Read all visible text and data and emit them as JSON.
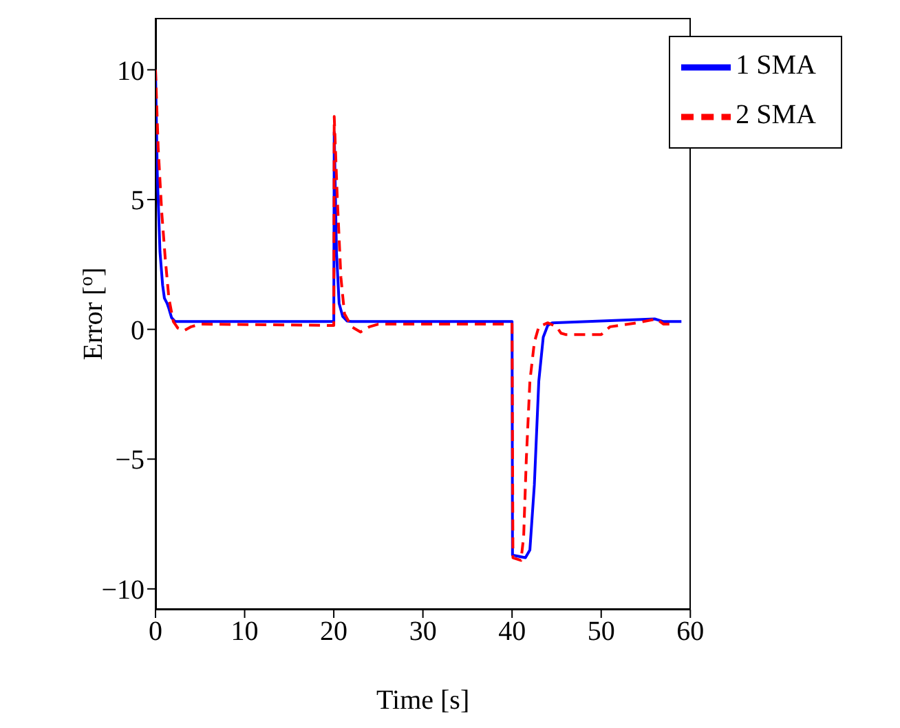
{
  "chart_data": {
    "type": "line",
    "xlabel": "Time [s]",
    "ylabel": "Error [$^{o}$]",
    "xlim": [
      0,
      60
    ],
    "xticks": [
      0,
      10,
      20,
      30,
      40,
      50,
      60
    ],
    "ylim": [
      -10.8,
      12
    ],
    "yticks": [
      {
        "value": -10,
        "label": "−10"
      },
      {
        "value": -5,
        "label": "−5"
      },
      0,
      5,
      10
    ],
    "grid": false,
    "legend": "top right",
    "series": [
      {
        "name": "1 SMA",
        "color": "#0000ff",
        "line_style": "solid",
        "x": [
          0,
          0.2,
          0.5,
          0.8,
          1.0,
          1.3,
          1.5,
          1.8,
          2.2,
          20,
          20.05,
          20.3,
          20.6,
          21,
          21.5,
          22,
          40,
          40.05,
          41.5,
          42,
          42.5,
          43,
          43.5,
          44,
          44.5,
          56,
          57,
          59
        ],
        "values": [
          10,
          6,
          3,
          1.7,
          1.2,
          1.0,
          0.8,
          0.45,
          0.3,
          0.3,
          7.6,
          3,
          1,
          0.5,
          0.32,
          0.3,
          0.3,
          -8.7,
          -8.8,
          -8.5,
          -6,
          -2,
          -0.3,
          0.15,
          0.25,
          0.4,
          0.3,
          0.3
        ]
      },
      {
        "name": "2 SMA",
        "color": "#ff0000",
        "line_style": "dashed",
        "x": [
          0,
          0.3,
          0.7,
          1.1,
          1.5,
          2,
          2.5,
          3.2,
          4,
          5,
          20,
          20.05,
          20.4,
          20.8,
          21.2,
          22,
          23,
          24,
          25,
          40,
          40.1,
          41,
          41.3,
          41.6,
          42,
          42.5,
          43,
          44,
          45,
          45.5,
          46,
          50,
          51,
          54,
          56.2,
          57,
          58
        ],
        "values": [
          10,
          7,
          4.5,
          2.7,
          1.2,
          0.3,
          0.05,
          -0.05,
          0.1,
          0.2,
          0.15,
          8.2,
          5,
          2,
          0.6,
          0.1,
          -0.1,
          0.1,
          0.2,
          0.2,
          -8.8,
          -8.9,
          -8.0,
          -5,
          -2,
          -0.5,
          0.1,
          0.25,
          0.1,
          -0.15,
          -0.2,
          -0.2,
          0.1,
          0.25,
          0.4,
          0.2,
          0.2
        ]
      }
    ]
  }
}
